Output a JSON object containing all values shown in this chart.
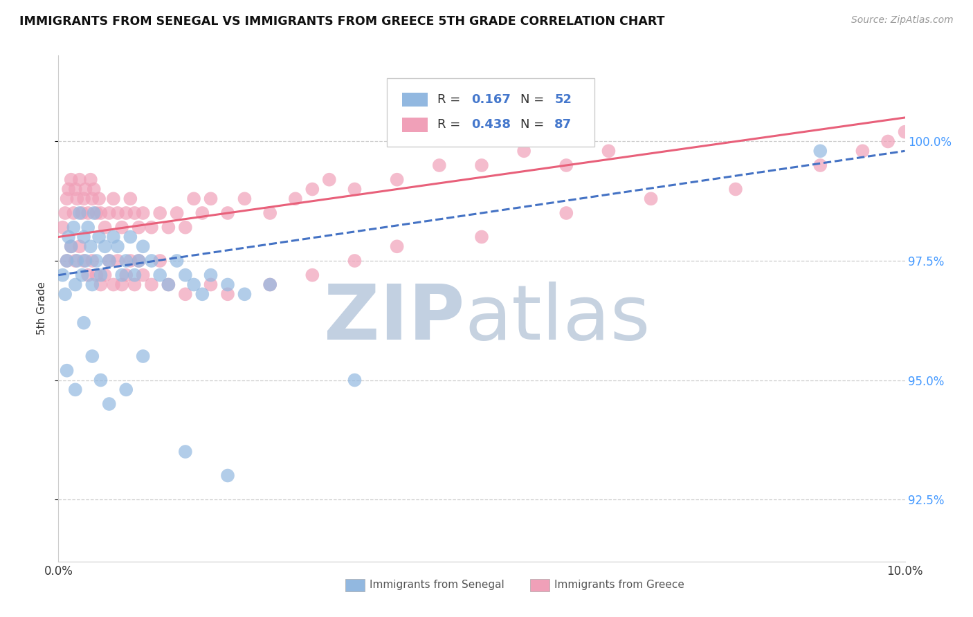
{
  "title": "IMMIGRANTS FROM SENEGAL VS IMMIGRANTS FROM GREECE 5TH GRADE CORRELATION CHART",
  "source": "Source: ZipAtlas.com",
  "ylabel": "5th Grade",
  "ytick_values": [
    92.5,
    95.0,
    97.5,
    100.0
  ],
  "xlim": [
    0.0,
    10.0
  ],
  "ylim": [
    91.2,
    101.8
  ],
  "senegal_color": "#92B8E0",
  "greece_color": "#F0A0B8",
  "senegal_line_color": "#4472C4",
  "greece_line_color": "#E8607A",
  "background_color": "#FFFFFF",
  "watermark_zip_color": "#B8C8DC",
  "watermark_atlas_color": "#A0B4CC",
  "senegal_x": [
    0.05,
    0.08,
    0.1,
    0.12,
    0.15,
    0.18,
    0.2,
    0.22,
    0.25,
    0.28,
    0.3,
    0.32,
    0.35,
    0.38,
    0.4,
    0.42,
    0.45,
    0.48,
    0.5,
    0.55,
    0.6,
    0.65,
    0.7,
    0.75,
    0.8,
    0.85,
    0.9,
    0.95,
    1.0,
    1.1,
    1.2,
    1.3,
    1.4,
    1.5,
    1.6,
    1.7,
    1.8,
    2.0,
    2.2,
    2.5,
    0.1,
    0.2,
    0.3,
    0.4,
    0.5,
    0.6,
    0.8,
    1.0,
    1.5,
    2.0,
    3.5,
    9.0
  ],
  "senegal_y": [
    97.2,
    96.8,
    97.5,
    98.0,
    97.8,
    98.2,
    97.0,
    97.5,
    98.5,
    97.2,
    98.0,
    97.5,
    98.2,
    97.8,
    97.0,
    98.5,
    97.5,
    98.0,
    97.2,
    97.8,
    97.5,
    98.0,
    97.8,
    97.2,
    97.5,
    98.0,
    97.2,
    97.5,
    97.8,
    97.5,
    97.2,
    97.0,
    97.5,
    97.2,
    97.0,
    96.8,
    97.2,
    97.0,
    96.8,
    97.0,
    95.2,
    94.8,
    96.2,
    95.5,
    95.0,
    94.5,
    94.8,
    95.5,
    93.5,
    93.0,
    95.0,
    99.8
  ],
  "greece_x": [
    0.05,
    0.08,
    0.1,
    0.12,
    0.15,
    0.18,
    0.2,
    0.22,
    0.25,
    0.28,
    0.3,
    0.32,
    0.35,
    0.38,
    0.4,
    0.42,
    0.45,
    0.48,
    0.5,
    0.55,
    0.6,
    0.65,
    0.7,
    0.75,
    0.8,
    0.85,
    0.9,
    0.95,
    1.0,
    1.1,
    1.2,
    1.3,
    1.4,
    1.5,
    1.6,
    1.7,
    1.8,
    2.0,
    2.2,
    2.5,
    2.8,
    3.0,
    3.2,
    3.5,
    4.0,
    4.5,
    5.0,
    5.5,
    6.0,
    6.5,
    0.1,
    0.15,
    0.2,
    0.25,
    0.3,
    0.35,
    0.4,
    0.45,
    0.5,
    0.55,
    0.6,
    0.65,
    0.7,
    0.75,
    0.8,
    0.85,
    0.9,
    0.95,
    1.0,
    1.1,
    1.2,
    1.3,
    1.5,
    1.8,
    2.0,
    2.5,
    3.0,
    3.5,
    4.0,
    5.0,
    6.0,
    7.0,
    8.0,
    9.0,
    9.5,
    9.8,
    10.0
  ],
  "greece_y": [
    98.2,
    98.5,
    98.8,
    99.0,
    99.2,
    98.5,
    99.0,
    98.8,
    99.2,
    98.5,
    98.8,
    99.0,
    98.5,
    99.2,
    98.8,
    99.0,
    98.5,
    98.8,
    98.5,
    98.2,
    98.5,
    98.8,
    98.5,
    98.2,
    98.5,
    98.8,
    98.5,
    98.2,
    98.5,
    98.2,
    98.5,
    98.2,
    98.5,
    98.2,
    98.8,
    98.5,
    98.8,
    98.5,
    98.8,
    98.5,
    98.8,
    99.0,
    99.2,
    99.0,
    99.2,
    99.5,
    99.5,
    99.8,
    99.5,
    99.8,
    97.5,
    97.8,
    97.5,
    97.8,
    97.5,
    97.2,
    97.5,
    97.2,
    97.0,
    97.2,
    97.5,
    97.0,
    97.5,
    97.0,
    97.2,
    97.5,
    97.0,
    97.5,
    97.2,
    97.0,
    97.5,
    97.0,
    96.8,
    97.0,
    96.8,
    97.0,
    97.2,
    97.5,
    97.8,
    98.0,
    98.5,
    98.8,
    99.0,
    99.5,
    99.8,
    100.0,
    100.2
  ]
}
